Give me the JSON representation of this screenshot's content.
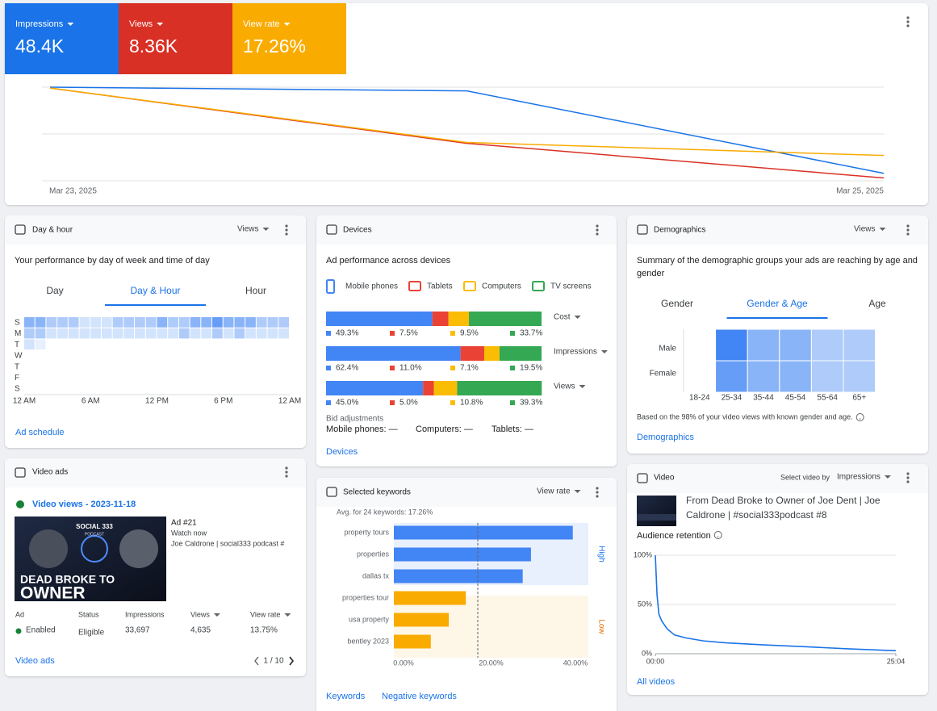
{
  "summary": {
    "chart": {
      "type": "line",
      "categories": [
        "Mar 23, 2025",
        null,
        "Mar 25, 2025"
      ],
      "series": [
        {
          "name": "Impressions",
          "total": "48.4K",
          "color": "#1a73e8",
          "values": [
            100,
            96,
            8
          ]
        },
        {
          "name": "Views",
          "total": "8.36K",
          "color": "#d93025",
          "values": [
            99,
            40,
            3
          ]
        },
        {
          "name": "View rate",
          "total": "17.26%",
          "color": "#f9ab00",
          "values": [
            99,
            41,
            27
          ]
        }
      ],
      "ylim": [
        0,
        100
      ],
      "grid_lines": [
        0,
        50,
        100
      ]
    }
  },
  "day_hour": {
    "title": "Day & hour",
    "metric": "Views",
    "subtitle": "Your performance by day of week and time of day",
    "tabs": [
      "Day",
      "Day & Hour",
      "Hour"
    ],
    "active_tab": 1,
    "days": [
      "S",
      "M",
      "T",
      "W",
      "T",
      "F",
      "S"
    ],
    "hour_labels": [
      "12 AM",
      "6 AM",
      "12 PM",
      "6 PM",
      "12 AM"
    ],
    "intensity": [
      [
        4,
        4,
        3,
        3,
        3,
        2,
        2,
        2,
        3,
        3,
        3,
        3,
        4,
        3,
        3,
        4,
        4,
        5,
        4,
        4,
        4,
        3,
        3,
        3
      ],
      [
        3,
        3,
        2,
        2,
        2,
        2,
        2,
        2,
        2,
        2,
        2,
        2,
        2,
        2,
        3,
        2,
        2,
        3,
        2,
        3,
        2,
        2,
        2,
        2
      ],
      [
        2,
        1,
        0,
        0,
        0,
        0,
        0,
        0,
        0,
        0,
        0,
        0,
        0,
        0,
        0,
        0,
        0,
        0,
        0,
        0,
        0,
        0,
        0,
        0
      ],
      [
        0,
        0,
        0,
        0,
        0,
        0,
        0,
        0,
        0,
        0,
        0,
        0,
        0,
        0,
        0,
        0,
        0,
        0,
        0,
        0,
        0,
        0,
        0,
        0
      ],
      [
        0,
        0,
        0,
        0,
        0,
        0,
        0,
        0,
        0,
        0,
        0,
        0,
        0,
        0,
        0,
        0,
        0,
        0,
        0,
        0,
        0,
        0,
        0,
        0
      ],
      [
        0,
        0,
        0,
        0,
        0,
        0,
        0,
        0,
        0,
        0,
        0,
        0,
        0,
        0,
        0,
        0,
        0,
        0,
        0,
        0,
        0,
        0,
        0,
        0
      ],
      [
        0,
        0,
        0,
        0,
        0,
        0,
        0,
        0,
        0,
        0,
        0,
        0,
        0,
        0,
        0,
        0,
        0,
        0,
        0,
        0,
        0,
        0,
        0,
        0
      ]
    ],
    "link": "Ad schedule"
  },
  "video_ads": {
    "title": "Video ads",
    "campaign": "Video views - 2023-11-18",
    "thumbnail": {
      "brand": "SOCIAL 333",
      "sub": "PODCAST",
      "headline": [
        "DEAD BROKE TO",
        "OWNER"
      ]
    },
    "ad": {
      "name": "Ad #21",
      "cta": "Watch now",
      "headline": "Joe Caldrone | social333 podcast #"
    },
    "table": {
      "headers": [
        "Ad",
        "Status",
        "Impressions",
        "Views",
        "View rate"
      ],
      "row": [
        "Enabled",
        "Eligible",
        "33,697",
        "4,635",
        "13.75%"
      ]
    },
    "link": "Video ads",
    "pager": "1 / 10"
  },
  "devices": {
    "title": "Devices",
    "subtitle": "Ad performance across devices",
    "legend": [
      {
        "name": "Mobile phones",
        "color": "#4285f4"
      },
      {
        "name": "Tablets",
        "color": "#ea4335"
      },
      {
        "name": "Computers",
        "color": "#fbbc04"
      },
      {
        "name": "TV screens",
        "color": "#34a853"
      }
    ],
    "xlim": [
      0,
      100
    ],
    "bars": [
      {
        "metric": "Cost",
        "values": [
          49.3,
          7.5,
          9.5,
          33.7
        ],
        "value_labels": [
          "49.3%",
          "7.5%",
          "9.5%",
          "33.7%"
        ]
      },
      {
        "metric": "Impressions",
        "values": [
          62.4,
          11.0,
          7.1,
          19.5
        ],
        "value_labels": [
          "62.4%",
          "11.0%",
          "7.1%",
          "19.5%"
        ]
      },
      {
        "metric": "Views",
        "values": [
          45.0,
          5.0,
          10.8,
          39.3
        ],
        "value_labels": [
          "45.0%",
          "5.0%",
          "10.8%",
          "39.3%"
        ]
      }
    ],
    "bid": {
      "title": "Bid adjustments",
      "items": [
        "Mobile phones: —",
        "Computers: —",
        "Tablets: —"
      ]
    },
    "link": "Devices"
  },
  "demographics": {
    "title": "Demographics",
    "metric": "Views",
    "subtitle": "Summary of the demographic groups your ads are reaching by age and gender",
    "tabs": [
      "Gender",
      "Gender & Age",
      "Age"
    ],
    "active_tab": 1,
    "genders": [
      "Male",
      "Female"
    ],
    "ages": [
      "18-24",
      "25-34",
      "35-44",
      "45-54",
      "55-64",
      "65+"
    ],
    "intensity": [
      [
        null,
        5,
        3,
        3,
        2,
        2
      ],
      [
        null,
        4,
        3,
        3,
        2,
        2
      ]
    ],
    "note": "Based on the 98% of your video views with known gender and age.",
    "link": "Demographics"
  },
  "keywords": {
    "title": "Selected keywords",
    "metric": "View rate",
    "avg_label": "Avg. for 24 keywords: 17.26%",
    "avg": 17.26,
    "groups": [
      {
        "label": "High",
        "color": "#1a73e8",
        "bar_color": "#4285f4",
        "background": "#e8f0fe",
        "categories": [
          "property tours",
          "properties",
          "dallas tx"
        ],
        "values": [
          36.8,
          28.2,
          26.5
        ]
      },
      {
        "label": "Low",
        "color": "#e37400",
        "bar_color": "#f9ab00",
        "background": "#fef7e8",
        "categories": [
          "properties tour",
          "usa property",
          "bentley 2023"
        ],
        "values": [
          14.8,
          11.3,
          7.6
        ]
      }
    ],
    "xlim": [
      0,
      40
    ],
    "xticks": [
      {
        "value": 0,
        "label": "0.00%"
      },
      {
        "value": 20,
        "label": "20.00%"
      },
      {
        "value": 40,
        "label": "40.00%"
      }
    ],
    "links": [
      "Keywords",
      "Negative keywords"
    ]
  },
  "video": {
    "title": "Video",
    "select_label": "Select video by",
    "metric": "Impressions",
    "video_title": "From Dead Broke to Owner of Joe Dent | Joe Caldrone | #social333podcast #8",
    "retention": {
      "title": "Audience retention",
      "type": "line",
      "color": "#1a73e8",
      "x": [
        0,
        0.7,
        1.5,
        2.7,
        5,
        8,
        12.8,
        20,
        29.5,
        45,
        63,
        80,
        100
      ],
      "values": [
        100,
        60,
        40,
        33,
        25,
        19,
        16,
        13,
        11,
        9,
        7,
        5,
        3
      ],
      "xlim": [
        0,
        100
      ],
      "xticks": [
        {
          "value": 0,
          "label": "00:00"
        },
        {
          "value": 100,
          "label": "25:04"
        }
      ],
      "ylim": [
        0,
        100
      ],
      "yticks": [
        {
          "value": 0,
          "label": "0%"
        },
        {
          "value": 50,
          "label": "50%"
        },
        {
          "value": 100,
          "label": "100%"
        }
      ]
    },
    "link": "All videos"
  }
}
